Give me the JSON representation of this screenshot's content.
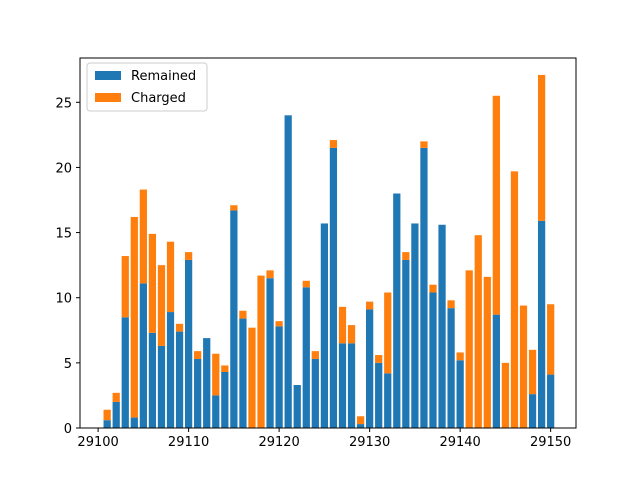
{
  "chart_data": {
    "type": "bar",
    "stacked": true,
    "xlim": [
      29098,
      29152.8
    ],
    "ylim": [
      0,
      28.4
    ],
    "x_ticks": [
      29100,
      29110,
      29120,
      29130,
      29140,
      29150
    ],
    "y_ticks": [
      0,
      5,
      10,
      15,
      20,
      25
    ],
    "legend_position": "top-left",
    "x": [
      29101,
      29102,
      29103,
      29104,
      29105,
      29106,
      29107,
      29108,
      29109,
      29110,
      29111,
      29112,
      29113,
      29114,
      29115,
      29116,
      29117,
      29118,
      29119,
      29120,
      29121,
      29122,
      29123,
      29124,
      29125,
      29126,
      29127,
      29128,
      29129,
      29130,
      29131,
      29132,
      29133,
      29134,
      29135,
      29136,
      29137,
      29138,
      29139,
      29140,
      29141,
      29142,
      29143,
      29144,
      29145,
      29146,
      29147,
      29148,
      29149,
      29150
    ],
    "series": [
      {
        "name": "Remained",
        "color": "#1f77b4",
        "values": [
          0.6,
          2.0,
          8.5,
          0.8,
          11.1,
          7.3,
          6.3,
          8.9,
          7.4,
          12.9,
          5.3,
          6.9,
          2.5,
          4.3,
          16.7,
          8.4,
          0,
          0,
          11.5,
          7.8,
          24.0,
          3.3,
          10.8,
          5.3,
          15.7,
          21.5,
          6.5,
          6.5,
          0.3,
          9.1,
          5.0,
          4.2,
          18.0,
          12.9,
          15.7,
          21.5,
          10.4,
          15.6,
          9.2,
          5.2,
          0,
          0,
          0,
          8.7,
          0,
          0,
          0,
          2.6,
          15.9,
          4.1
        ]
      },
      {
        "name": "Charged",
        "color": "#ff7f0e",
        "values": [
          0.8,
          0.7,
          4.7,
          15.4,
          7.2,
          7.6,
          6.2,
          5.4,
          0.6,
          0.6,
          0.6,
          0,
          3.2,
          0.5,
          0.4,
          0.6,
          7.7,
          11.7,
          0.6,
          0.4,
          0,
          0,
          0.5,
          0.6,
          0,
          0.6,
          2.8,
          1.4,
          0.6,
          0.6,
          0.6,
          6.2,
          0,
          0.6,
          0,
          0.5,
          0.6,
          0,
          0.6,
          0.6,
          12.1,
          14.8,
          11.6,
          16.8,
          5.0,
          19.7,
          9.4,
          3.4,
          11.2,
          5.4
        ]
      }
    ]
  }
}
